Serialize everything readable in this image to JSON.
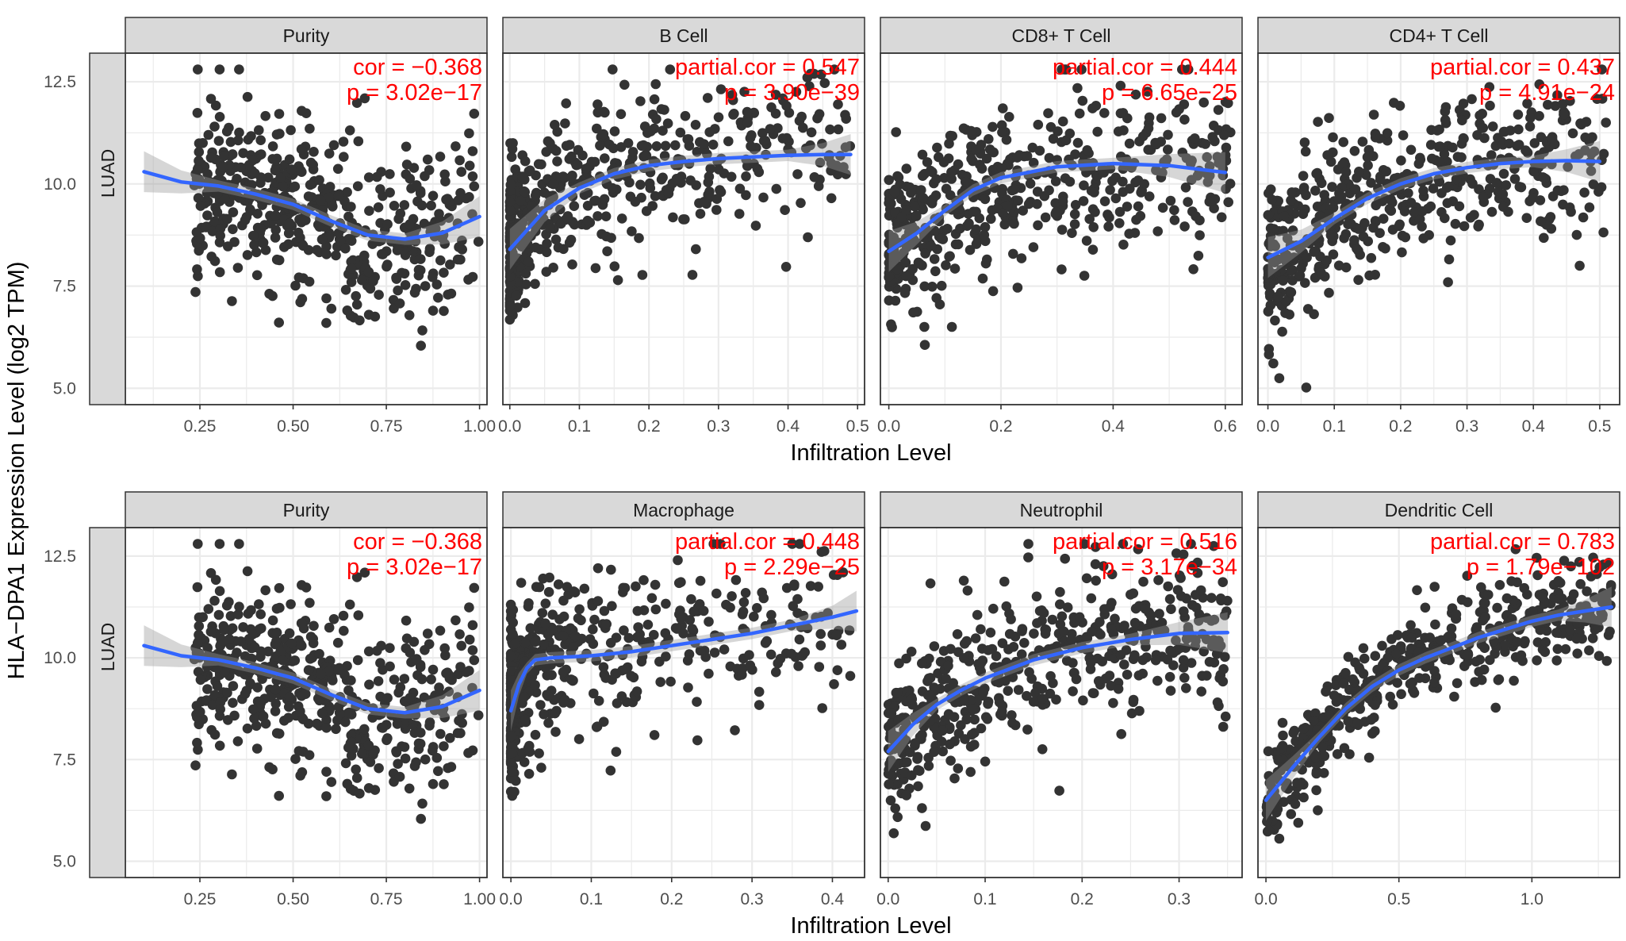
{
  "figure": {
    "ylabel": "HLA−DPA1 Expression Level (log2 TPM)",
    "xlabel": "Infiltration Level",
    "row_label": "LUAD"
  },
  "colors": {
    "points": "#333333",
    "fit_line": "#3366ff",
    "ribbon": "#999999",
    "annotation": "#ff0000",
    "strip_fill": "#d9d9d9",
    "grid": "#ebebeb"
  },
  "chart_data": [
    {
      "type": "scatter",
      "title": "Purity",
      "xlabel": "",
      "ylabel": "",
      "xlim": [
        0.05,
        1.02
      ],
      "ylim": [
        4.6,
        13.2
      ],
      "xticks": [
        0.25,
        0.5,
        0.75,
        1.0
      ],
      "xtick_labels": [
        "0.25",
        "0.50",
        "0.75",
        "1.00"
      ],
      "yticks": [
        5.0,
        7.5,
        10.0,
        12.5
      ],
      "ytick_labels": [
        "5.0",
        "7.5",
        "10.0",
        "12.5"
      ],
      "annotation": [
        "cor = −0.368",
        "p = 3.02e−17"
      ],
      "fit": {
        "x": [
          0.1,
          0.2,
          0.3,
          0.4,
          0.5,
          0.6,
          0.7,
          0.8,
          0.9,
          1.0
        ],
        "y": [
          10.3,
          10.05,
          9.95,
          9.75,
          9.5,
          9.1,
          8.75,
          8.65,
          8.8,
          9.2
        ]
      },
      "points": {
        "n": 520,
        "x_range": [
          0.1,
          1.0
        ],
        "x_skew": 0.9,
        "y_noise": 1.05,
        "seed": 11
      },
      "grid": true
    },
    {
      "type": "scatter",
      "title": "B Cell",
      "xlabel": "",
      "ylabel": "",
      "xlim": [
        -0.01,
        0.51
      ],
      "ylim": [
        4.6,
        13.2
      ],
      "xticks": [
        0.0,
        0.1,
        0.2,
        0.3,
        0.4,
        0.5
      ],
      "xtick_labels": [
        "0.0",
        "0.1",
        "0.2",
        "0.3",
        "0.4",
        "0.5"
      ],
      "yticks": [
        5.0,
        7.5,
        10.0,
        12.5
      ],
      "ytick_labels": [
        "5.0",
        "7.5",
        "10.0",
        "12.5"
      ],
      "annotation": [
        "partial.cor = 0.547",
        "p = 3.90e−39"
      ],
      "fit": {
        "x": [
          0.0,
          0.05,
          0.1,
          0.15,
          0.2,
          0.25,
          0.3,
          0.35,
          0.4,
          0.45,
          0.49
        ],
        "y": [
          8.4,
          9.35,
          9.9,
          10.25,
          10.45,
          10.55,
          10.62,
          10.66,
          10.7,
          10.72,
          10.72
        ]
      },
      "points": {
        "n": 520,
        "x_range": [
          0.0,
          0.49
        ],
        "x_skew": 2.2,
        "y_noise": 0.95,
        "seed": 23
      },
      "grid": true
    },
    {
      "type": "scatter",
      "title": "CD8+ T Cell",
      "xlabel": "",
      "ylabel": "",
      "xlim": [
        -0.015,
        0.63
      ],
      "ylim": [
        4.6,
        13.2
      ],
      "xticks": [
        0.0,
        0.2,
        0.4,
        0.6
      ],
      "xtick_labels": [
        "0.0",
        "0.2",
        "0.4",
        "0.6"
      ],
      "yticks": [
        5.0,
        7.5,
        10.0,
        12.5
      ],
      "ytick_labels": [
        "5.0",
        "7.5",
        "10.0",
        "12.5"
      ],
      "annotation": [
        "partial.cor = 0.444",
        "p = 6.65e−25"
      ],
      "fit": {
        "x": [
          0.0,
          0.05,
          0.1,
          0.15,
          0.2,
          0.3,
          0.4,
          0.5,
          0.6
        ],
        "y": [
          8.35,
          8.8,
          9.35,
          9.85,
          10.15,
          10.42,
          10.5,
          10.45,
          10.28
        ]
      },
      "points": {
        "n": 520,
        "x_range": [
          0.0,
          0.61
        ],
        "x_skew": 1.7,
        "y_noise": 1.0,
        "seed": 37
      },
      "grid": true
    },
    {
      "type": "scatter",
      "title": "CD4+ T Cell",
      "xlabel": "",
      "ylabel": "",
      "xlim": [
        -0.015,
        0.53
      ],
      "ylim": [
        4.6,
        13.2
      ],
      "xticks": [
        0.0,
        0.1,
        0.2,
        0.3,
        0.4,
        0.5
      ],
      "xtick_labels": [
        "0.0",
        "0.1",
        "0.2",
        "0.3",
        "0.4",
        "0.5"
      ],
      "yticks": [
        5.0,
        7.5,
        10.0,
        12.5
      ],
      "ytick_labels": [
        "5.0",
        "7.5",
        "10.0",
        "12.5"
      ],
      "annotation": [
        "partial.cor = 0.437",
        "p = 4.91e−24"
      ],
      "fit": {
        "x": [
          0.0,
          0.05,
          0.1,
          0.15,
          0.2,
          0.25,
          0.3,
          0.35,
          0.4,
          0.45,
          0.5
        ],
        "y": [
          8.2,
          8.6,
          9.15,
          9.65,
          10.0,
          10.25,
          10.4,
          10.5,
          10.55,
          10.57,
          10.55
        ]
      },
      "points": {
        "n": 520,
        "x_range": [
          0.0,
          0.51
        ],
        "x_skew": 1.5,
        "y_noise": 1.0,
        "seed": 41
      },
      "grid": true
    },
    {
      "type": "scatter",
      "title": "Purity",
      "xlabel": "",
      "ylabel": "",
      "xlim": [
        0.05,
        1.02
      ],
      "ylim": [
        4.6,
        13.2
      ],
      "xticks": [
        0.25,
        0.5,
        0.75,
        1.0
      ],
      "xtick_labels": [
        "0.25",
        "0.50",
        "0.75",
        "1.00"
      ],
      "yticks": [
        5.0,
        7.5,
        10.0,
        12.5
      ],
      "ytick_labels": [
        "5.0",
        "7.5",
        "10.0",
        "12.5"
      ],
      "annotation": [
        "cor = −0.368",
        "p = 3.02e−17"
      ],
      "fit": {
        "x": [
          0.1,
          0.2,
          0.3,
          0.4,
          0.5,
          0.6,
          0.7,
          0.8,
          0.9,
          1.0
        ],
        "y": [
          10.3,
          10.05,
          9.95,
          9.75,
          9.5,
          9.1,
          8.75,
          8.65,
          8.8,
          9.2
        ]
      },
      "points": {
        "n": 520,
        "x_range": [
          0.1,
          1.0
        ],
        "x_skew": 0.9,
        "y_noise": 1.05,
        "seed": 11
      },
      "grid": true
    },
    {
      "type": "scatter",
      "title": "Macrophage",
      "xlabel": "",
      "ylabel": "",
      "xlim": [
        -0.01,
        0.44
      ],
      "ylim": [
        4.6,
        13.2
      ],
      "xticks": [
        0.0,
        0.1,
        0.2,
        0.3,
        0.4
      ],
      "xtick_labels": [
        "0.0",
        "0.1",
        "0.2",
        "0.3",
        "0.4"
      ],
      "yticks": [
        5.0,
        7.5,
        10.0,
        12.5
      ],
      "ytick_labels": [
        "5.0",
        "7.5",
        "10.0",
        "12.5"
      ],
      "annotation": [
        "partial.cor = 0.448",
        "p =  2.29e−25"
      ],
      "fit": {
        "x": [
          0.0,
          0.01,
          0.02,
          0.03,
          0.05,
          0.1,
          0.15,
          0.2,
          0.25,
          0.3,
          0.35,
          0.4,
          0.43
        ],
        "y": [
          8.7,
          9.35,
          9.75,
          9.95,
          10.0,
          10.05,
          10.15,
          10.3,
          10.45,
          10.6,
          10.8,
          11.0,
          11.15
        ]
      },
      "points": {
        "n": 520,
        "x_range": [
          0.0,
          0.43
        ],
        "x_skew": 3.0,
        "y_noise": 1.0,
        "seed": 53
      },
      "grid": true
    },
    {
      "type": "scatter",
      "title": "Neutrophil",
      "xlabel": "",
      "ylabel": "",
      "xlim": [
        -0.008,
        0.365
      ],
      "ylim": [
        4.6,
        13.2
      ],
      "xticks": [
        0.0,
        0.1,
        0.2,
        0.3
      ],
      "xtick_labels": [
        "0.0",
        "0.1",
        "0.2",
        "0.3"
      ],
      "yticks": [
        5.0,
        7.5,
        10.0,
        12.5
      ],
      "ytick_labels": [
        "5.0",
        "7.5",
        "10.0",
        "12.5"
      ],
      "annotation": [
        "partial.cor = 0.516",
        "p =  3.17e−34"
      ],
      "fit": {
        "x": [
          0.0,
          0.025,
          0.05,
          0.075,
          0.1,
          0.15,
          0.2,
          0.25,
          0.3,
          0.35
        ],
        "y": [
          7.7,
          8.35,
          8.85,
          9.2,
          9.5,
          9.95,
          10.25,
          10.45,
          10.6,
          10.62
        ]
      },
      "points": {
        "n": 520,
        "x_range": [
          0.0,
          0.35
        ],
        "x_skew": 1.3,
        "y_noise": 0.95,
        "seed": 67
      },
      "grid": true
    },
    {
      "type": "scatter",
      "title": "Dendritic Cell",
      "xlabel": "",
      "ylabel": "",
      "xlim": [
        -0.03,
        1.33
      ],
      "ylim": [
        4.6,
        13.2
      ],
      "xticks": [
        0.0,
        0.5,
        1.0
      ],
      "xtick_labels": [
        "0.0",
        "0.5",
        "1.0"
      ],
      "yticks": [
        5.0,
        7.5,
        10.0,
        12.5
      ],
      "ytick_labels": [
        "5.0",
        "7.5",
        "10.0",
        "12.5"
      ],
      "annotation": [
        "partial.cor = 0.783",
        "p = 1.79e−102"
      ],
      "fit": {
        "x": [
          0.0,
          0.1,
          0.2,
          0.3,
          0.4,
          0.5,
          0.6,
          0.7,
          0.8,
          0.9,
          1.0,
          1.1,
          1.2,
          1.3
        ],
        "y": [
          6.5,
          7.3,
          8.05,
          8.75,
          9.3,
          9.7,
          10.0,
          10.25,
          10.5,
          10.7,
          10.9,
          11.05,
          11.15,
          11.25
        ]
      },
      "points": {
        "n": 520,
        "x_range": [
          0.0,
          1.3
        ],
        "x_skew": 1.2,
        "y_noise": 0.6,
        "seed": 79
      },
      "grid": true
    }
  ]
}
